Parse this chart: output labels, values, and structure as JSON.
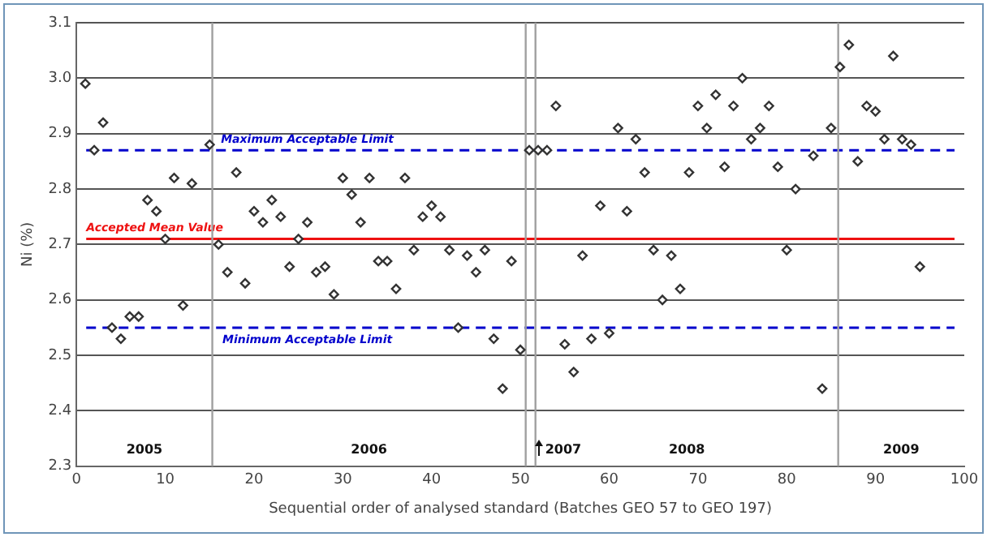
{
  "chart_data": {
    "type": "scatter",
    "xlabel": "Sequential order of analysed standard (Batches GEO 57 to GEO 197)",
    "ylabel": "Ni (%)",
    "x": [
      1,
      2,
      3,
      4,
      5,
      6,
      7,
      8,
      9,
      10,
      11,
      12,
      13,
      15,
      16,
      17,
      18,
      19,
      20,
      21,
      22,
      23,
      24,
      25,
      26,
      27,
      28,
      29,
      30,
      31,
      32,
      33,
      34,
      35,
      36,
      37,
      38,
      39,
      40,
      41,
      42,
      43,
      44,
      45,
      46,
      47,
      48,
      49,
      50,
      51,
      52,
      53,
      54,
      55,
      56,
      57,
      58,
      59,
      60,
      61,
      62,
      63,
      64,
      65,
      66,
      67,
      68,
      69,
      70,
      71,
      72,
      73,
      74,
      75,
      76,
      77,
      78,
      79,
      80,
      81,
      83,
      84,
      85,
      86,
      87,
      88,
      89,
      90,
      91,
      92,
      93,
      94,
      95
    ],
    "series": [
      {
        "color": "#333333",
        "values": [
          2.99,
          2.87,
          2.92,
          2.55,
          2.53,
          2.57,
          2.57,
          2.78,
          2.76,
          2.71,
          2.82,
          2.59,
          2.81,
          2.88,
          2.7,
          2.65,
          2.83,
          2.63,
          2.76,
          2.74,
          2.78,
          2.75,
          2.66,
          2.71,
          2.74,
          2.65,
          2.66,
          2.61,
          2.82,
          2.79,
          2.74,
          2.82,
          2.67,
          2.67,
          2.62,
          2.82,
          2.69,
          2.75,
          2.77,
          2.75,
          2.69,
          2.55,
          2.68,
          2.65,
          2.69,
          2.53,
          2.44,
          2.67,
          2.51,
          2.87,
          2.87,
          2.87,
          2.95,
          2.52,
          2.47,
          2.68,
          2.53,
          2.77,
          2.54,
          2.91,
          2.76,
          2.89,
          2.83,
          2.69,
          2.6,
          2.68,
          2.62,
          2.83,
          2.95,
          2.91,
          2.97,
          2.84,
          2.95,
          3.0,
          2.89,
          2.91,
          2.95,
          2.84,
          2.69,
          2.8,
          2.86,
          2.44,
          2.91,
          3.02,
          3.06,
          2.85,
          2.95,
          2.94,
          2.89,
          3.04,
          2.89,
          2.88,
          2.66
        ]
      }
    ],
    "marker": "diamond",
    "grid": "y",
    "legend": false,
    "xlim": [
      0,
      100
    ],
    "xticks": [
      0,
      10,
      20,
      30,
      40,
      50,
      60,
      70,
      80,
      90,
      100
    ],
    "ylim": [
      2.3,
      3.1
    ],
    "yticks": [
      2.3,
      2.4,
      2.5,
      2.6,
      2.7,
      2.8,
      2.9,
      {
        "value": 3,
        "label": "3.0"
      },
      3.1
    ],
    "ref_lines": [
      {
        "axis": "y",
        "value": 2.87,
        "label": "Maximum Acceptable Limit",
        "color": "#0000cc",
        "line_style": "dashed"
      },
      {
        "axis": "y",
        "value": 2.71,
        "label": "Accepted Mean Value",
        "color": "#ee1111",
        "line_style": "solid"
      },
      {
        "axis": "y",
        "value": 2.55,
        "label": "Minimum Acceptable Limit",
        "color": "#0000cc",
        "line_style": "dashed"
      },
      {
        "axis": "x",
        "value": 15.3,
        "color": "#a0a0a0",
        "line_style": "solid"
      },
      {
        "axis": "x",
        "value": 50.6,
        "color": "#a0a0a0",
        "line_style": "solid"
      },
      {
        "axis": "x",
        "value": 51.7,
        "color": "#a0a0a0",
        "line_style": "solid"
      },
      {
        "axis": "x",
        "value": 85.8,
        "color": "#a0a0a0",
        "line_style": "solid"
      }
    ],
    "annotations": [
      "2005",
      "2006",
      "2007",
      "2008",
      "2009"
    ]
  }
}
